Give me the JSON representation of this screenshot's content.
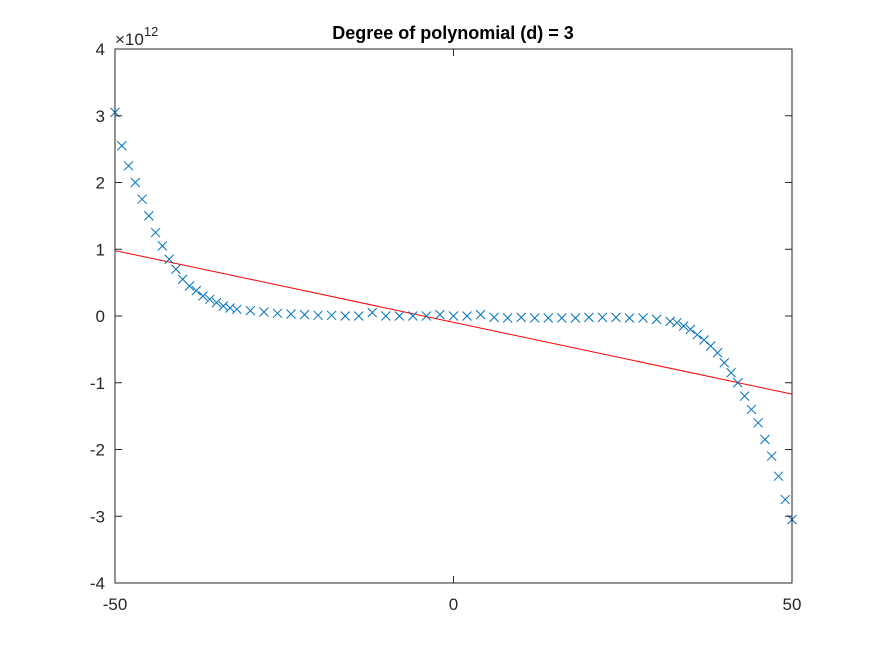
{
  "chart_data": {
    "type": "scatter",
    "title": "Degree of polynomial (d) = 3",
    "xlabel": "",
    "ylabel": "",
    "xlim": [
      -50,
      50
    ],
    "ylim": [
      -4,
      4
    ],
    "y_exponent_label": "×10",
    "y_exponent_power": "12",
    "y_scale": 1000000000000.0,
    "xticks": [
      -50,
      0,
      50
    ],
    "xtick_labels": [
      "-50",
      "0",
      "50"
    ],
    "yticks": [
      -4,
      -3,
      -2,
      -1,
      0,
      1,
      2,
      3,
      4
    ],
    "ytick_labels": [
      "-4",
      "-3",
      "-2",
      "-1",
      "0",
      "1",
      "2",
      "3",
      "4"
    ],
    "grid": false,
    "legend": "none",
    "colors": {
      "points": "#0072BD",
      "fit": "#FF0000",
      "axes": "#262626"
    },
    "series": [
      {
        "kind": "scatter-x-markers",
        "x": [
          -50,
          -49,
          -48,
          -47,
          -46,
          -45,
          -44,
          -43,
          -42,
          -41,
          -40,
          -39,
          -38,
          -37,
          -36,
          -35,
          -34,
          -33,
          -32,
          -30,
          -28,
          -26,
          -24,
          -22,
          -20,
          -18,
          -16,
          -14,
          -12,
          -10,
          -8,
          -6,
          -4,
          -2,
          0,
          2,
          4,
          6,
          8,
          10,
          12,
          14,
          16,
          18,
          20,
          22,
          24,
          26,
          28,
          30,
          32,
          33,
          34,
          35,
          36,
          37,
          38,
          39,
          40,
          41,
          42,
          43,
          44,
          45,
          46,
          47,
          48,
          49,
          50
        ],
        "y": [
          3.05,
          2.55,
          2.25,
          2.0,
          1.75,
          1.5,
          1.25,
          1.05,
          0.85,
          0.7,
          0.55,
          0.45,
          0.38,
          0.3,
          0.25,
          0.2,
          0.15,
          0.12,
          0.1,
          0.08,
          0.06,
          0.04,
          0.03,
          0.02,
          0.01,
          0.01,
          0.0,
          0.0,
          0.05,
          0.0,
          0.0,
          0.0,
          0.0,
          0.02,
          0.0,
          0.0,
          0.02,
          -0.02,
          -0.03,
          -0.02,
          -0.03,
          -0.03,
          -0.03,
          -0.03,
          -0.02,
          -0.02,
          -0.02,
          -0.03,
          -0.03,
          -0.05,
          -0.08,
          -0.1,
          -0.15,
          -0.2,
          -0.28,
          -0.36,
          -0.45,
          -0.55,
          -0.7,
          -0.85,
          -1.0,
          -1.2,
          -1.4,
          -1.6,
          -1.85,
          -2.1,
          -2.4,
          -2.75,
          -3.05
        ]
      },
      {
        "kind": "fit-line",
        "x": [
          -50,
          50
        ],
        "y": [
          0.98,
          -1.17
        ]
      }
    ]
  }
}
